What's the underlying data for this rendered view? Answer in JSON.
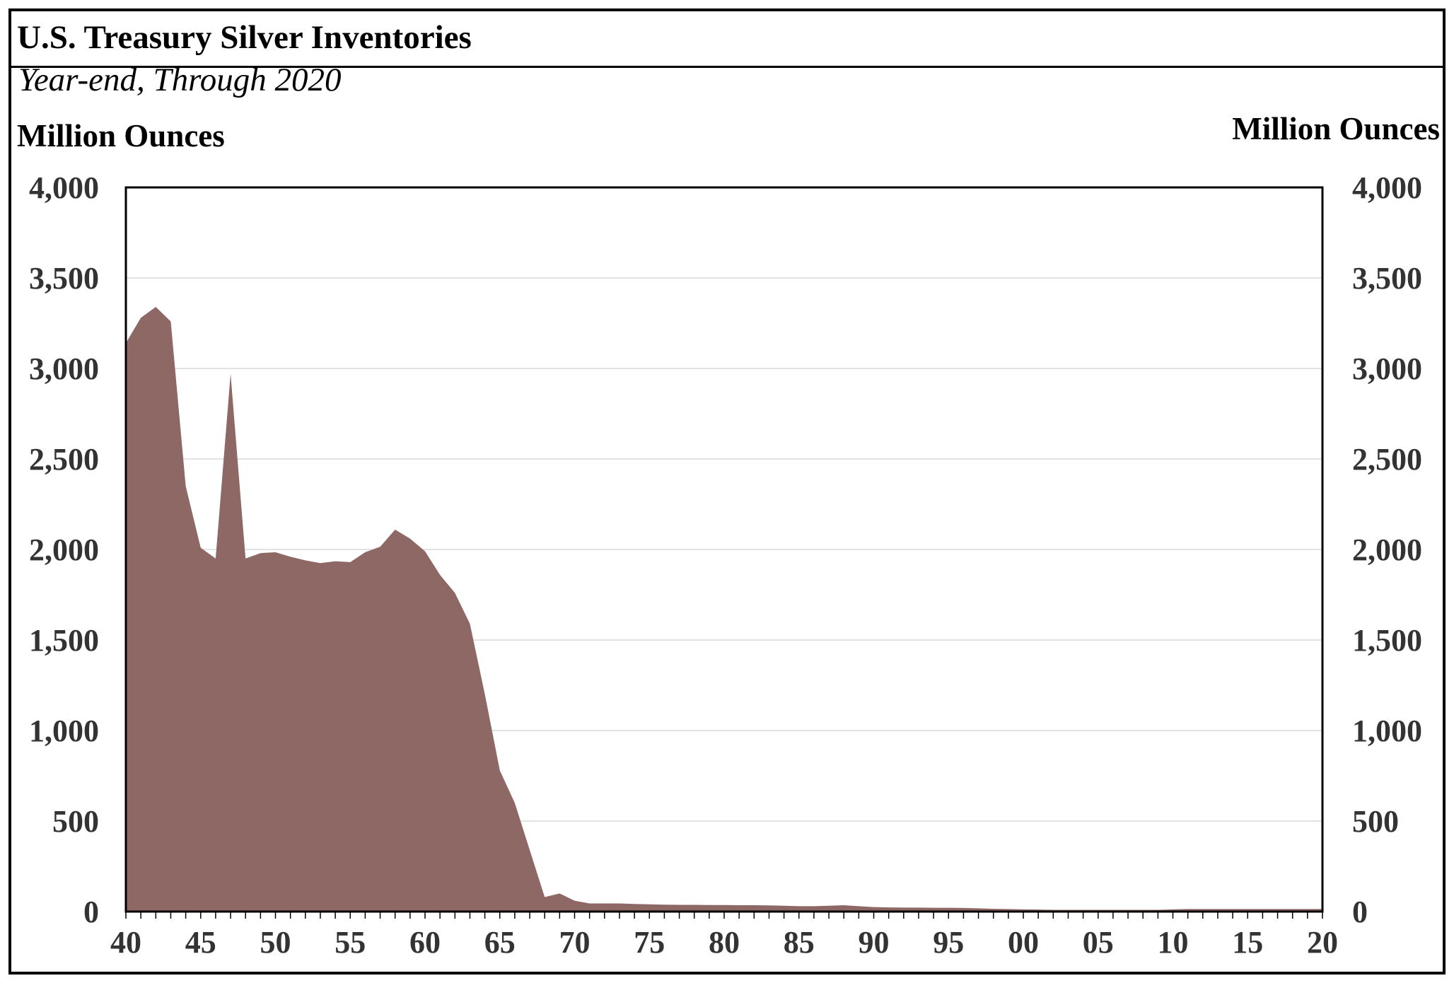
{
  "chart_data": {
    "type": "area",
    "title": "U.S. Treasury Silver Inventories",
    "subtitle": "Year-end, Through 2020",
    "ylabel_left": "Million Ounces",
    "ylabel_right": "Million Ounces",
    "xlabel": "",
    "x_range": [
      1940,
      2020
    ],
    "ylim": [
      0,
      4000
    ],
    "y_ticks": [
      {
        "value": 0,
        "label": "0"
      },
      {
        "value": 500,
        "label": "500"
      },
      {
        "value": 1000,
        "label": "1,000"
      },
      {
        "value": 1500,
        "label": "1,500"
      },
      {
        "value": 2000,
        "label": "2,000"
      },
      {
        "value": 2500,
        "label": "2,500"
      },
      {
        "value": 3000,
        "label": "3,000"
      },
      {
        "value": 3500,
        "label": "3,500"
      },
      {
        "value": 4000,
        "label": "4,000"
      }
    ],
    "x_ticks": [
      {
        "value": 1940,
        "label": "40"
      },
      {
        "value": 1945,
        "label": "45"
      },
      {
        "value": 1950,
        "label": "50"
      },
      {
        "value": 1955,
        "label": "55"
      },
      {
        "value": 1960,
        "label": "60"
      },
      {
        "value": 1965,
        "label": "65"
      },
      {
        "value": 1970,
        "label": "70"
      },
      {
        "value": 1975,
        "label": "75"
      },
      {
        "value": 1980,
        "label": "80"
      },
      {
        "value": 1985,
        "label": "85"
      },
      {
        "value": 1990,
        "label": "90"
      },
      {
        "value": 1995,
        "label": "95"
      },
      {
        "value": 2000,
        "label": "00"
      },
      {
        "value": 2005,
        "label": "05"
      },
      {
        "value": 2010,
        "label": "10"
      },
      {
        "value": 2015,
        "label": "15"
      },
      {
        "value": 2020,
        "label": "20"
      }
    ],
    "grid": true,
    "fill_color": "#8e6864",
    "series": [
      {
        "x": [
          1940,
          1941,
          1942,
          1943,
          1944,
          1945,
          1946,
          1947,
          1948,
          1949,
          1950,
          1951,
          1952,
          1953,
          1954,
          1955,
          1956,
          1957,
          1958,
          1959,
          1960,
          1961,
          1962,
          1963,
          1964,
          1965,
          1966,
          1967,
          1968,
          1969,
          1970,
          1971,
          1972,
          1973,
          1974,
          1975,
          1976,
          1977,
          1978,
          1979,
          1980,
          1981,
          1982,
          1983,
          1984,
          1985,
          1986,
          1987,
          1988,
          1989,
          1990,
          1991,
          1992,
          1993,
          1994,
          1995,
          1996,
          1997,
          1998,
          1999,
          2000,
          2001,
          2002,
          2003,
          2004,
          2005,
          2006,
          2007,
          2008,
          2009,
          2010,
          2011,
          2012,
          2013,
          2014,
          2015,
          2016,
          2017,
          2018,
          2019,
          2020
        ],
        "values": [
          3140,
          3280,
          3340,
          3260,
          2350,
          2010,
          1950,
          2970,
          1950,
          1980,
          1985,
          1960,
          1940,
          1925,
          1935,
          1930,
          1985,
          2015,
          2110,
          2060,
          1990,
          1860,
          1760,
          1590,
          1200,
          780,
          600,
          340,
          80,
          100,
          60,
          45,
          45,
          45,
          42,
          40,
          38,
          37,
          37,
          36,
          36,
          35,
          35,
          34,
          32,
          30,
          30,
          32,
          35,
          30,
          25,
          23,
          22,
          22,
          21,
          21,
          20,
          18,
          15,
          14,
          12,
          11,
          10,
          10,
          10,
          10,
          10,
          10,
          10,
          10,
          12,
          14,
          14,
          14,
          14,
          14,
          14,
          14,
          14,
          14,
          14
        ]
      }
    ]
  }
}
